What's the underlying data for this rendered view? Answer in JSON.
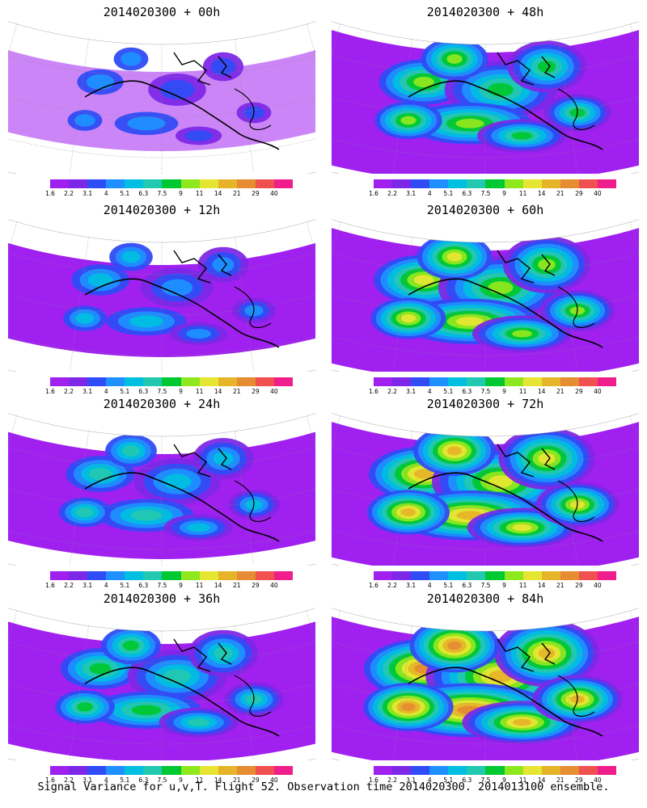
{
  "colorbar": {
    "labels": [
      "1.6",
      "2.2",
      "3.1",
      "4",
      "5.1",
      "6.3",
      "7.5",
      "9",
      "11",
      "14",
      "21",
      "29",
      "40"
    ],
    "colors": [
      "#a020f0",
      "#7d28e6",
      "#2f4cf5",
      "#1e90ff",
      "#00bfe0",
      "#22c8b0",
      "#00c832",
      "#8ee81e",
      "#e6e632",
      "#e6b428",
      "#e68c32",
      "#f05050",
      "#f01e8c"
    ]
  },
  "panels": [
    {
      "title": "2014020300 + 00h",
      "intensity": 0
    },
    {
      "title": "2014020300 + 48h",
      "intensity": 4
    },
    {
      "title": "2014020300 + 12h",
      "intensity": 1
    },
    {
      "title": "2014020300 + 60h",
      "intensity": 5
    },
    {
      "title": "2014020300 + 24h",
      "intensity": 2
    },
    {
      "title": "2014020300 + 72h",
      "intensity": 6
    },
    {
      "title": "2014020300 + 36h",
      "intensity": 3
    },
    {
      "title": "2014020300 + 84h",
      "intensity": 7
    }
  ],
  "caption": "Signal Variance for u,v,T. Flight 52. Observation time 2014020300. 2014013100 ensemble."
}
